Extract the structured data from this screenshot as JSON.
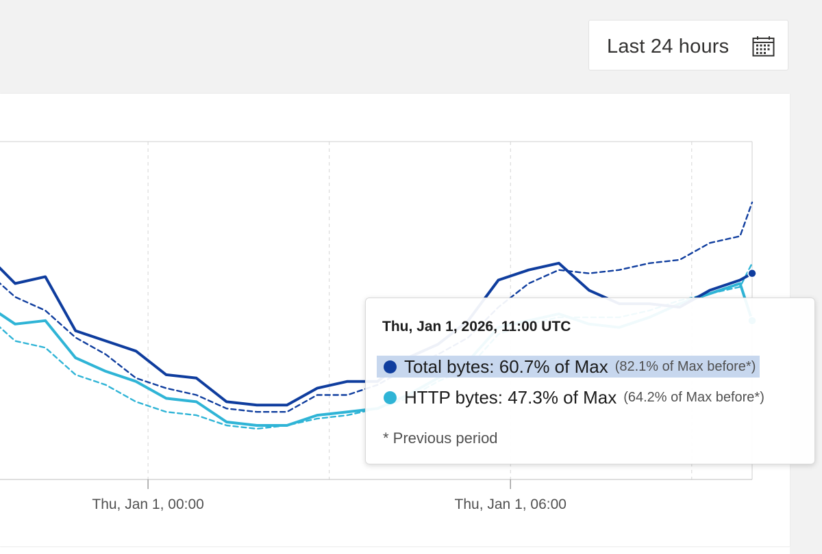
{
  "time_range": {
    "label": "Last 24 hours",
    "icon": "calendar-icon"
  },
  "x_axis": {
    "tick_labels": [
      "Thu, Jan 1, 00:00",
      "Thu, Jan 1, 06:00"
    ]
  },
  "tooltip": {
    "title": "Thu, Jan 1, 2026, 11:00 UTC",
    "rows": [
      {
        "label": "Total bytes: 60.7% of Max",
        "previous": "(82.1% of Max before*)",
        "color": "#0f3d9e"
      },
      {
        "label": "HTTP bytes: 47.3% of Max",
        "previous": "(64.2% of Max before*)",
        "color": "#2fb4d6"
      }
    ],
    "footnote": "* Previous period"
  },
  "colors": {
    "total": "#0f3d9e",
    "http": "#2fb4d6",
    "grid": "#cfcfcf",
    "highlight": "#c7d7ee"
  },
  "chart_data": {
    "type": "line",
    "x_unit": "hours relative to Thu, Jan 1, 00:00 UTC",
    "xlim": [
      -2.7,
      10.0
    ],
    "ylim": [
      0,
      100
    ],
    "x": [
      -2.7,
      -2.2,
      -1.7,
      -1.2,
      -0.7,
      -0.2,
      0.3,
      0.8,
      1.3,
      1.8,
      2.3,
      2.8,
      3.3,
      3.8,
      4.3,
      4.8,
      5.3,
      5.8,
      6.3,
      6.8,
      7.3,
      7.8,
      8.3,
      8.8,
      9.3,
      9.8,
      10.0
    ],
    "series": [
      {
        "name": "Total bytes",
        "style": "solid",
        "values": [
          67,
          58,
          60,
          44,
          41,
          38,
          31,
          30,
          23,
          22,
          22,
          27,
          29,
          29,
          36,
          40,
          47,
          59,
          62,
          64,
          56,
          52,
          52,
          51,
          56,
          59,
          61
        ]
      },
      {
        "name": "Total bytes (previous period)",
        "style": "dashed",
        "values": [
          62,
          54,
          50,
          42,
          37,
          30,
          27,
          25,
          21,
          20,
          20,
          25,
          25,
          28,
          33,
          37,
          42,
          51,
          58,
          62,
          61,
          62,
          64,
          65,
          70,
          72,
          82
        ]
      },
      {
        "name": "HTTP bytes",
        "style": "solid",
        "values": [
          52,
          46,
          47,
          36,
          32,
          29,
          24,
          23,
          17,
          16,
          16,
          19,
          20,
          21,
          25,
          30,
          35,
          45,
          47,
          49,
          46,
          45,
          48,
          52,
          55,
          58,
          47
        ]
      },
      {
        "name": "HTTP bytes (previous period)",
        "style": "dashed",
        "values": [
          49,
          41,
          39,
          31,
          28,
          23,
          20,
          19,
          16,
          15,
          16,
          18,
          19,
          21,
          24,
          29,
          33,
          43,
          46,
          48,
          48,
          48,
          50,
          53,
          55,
          57,
          64
        ]
      }
    ]
  }
}
